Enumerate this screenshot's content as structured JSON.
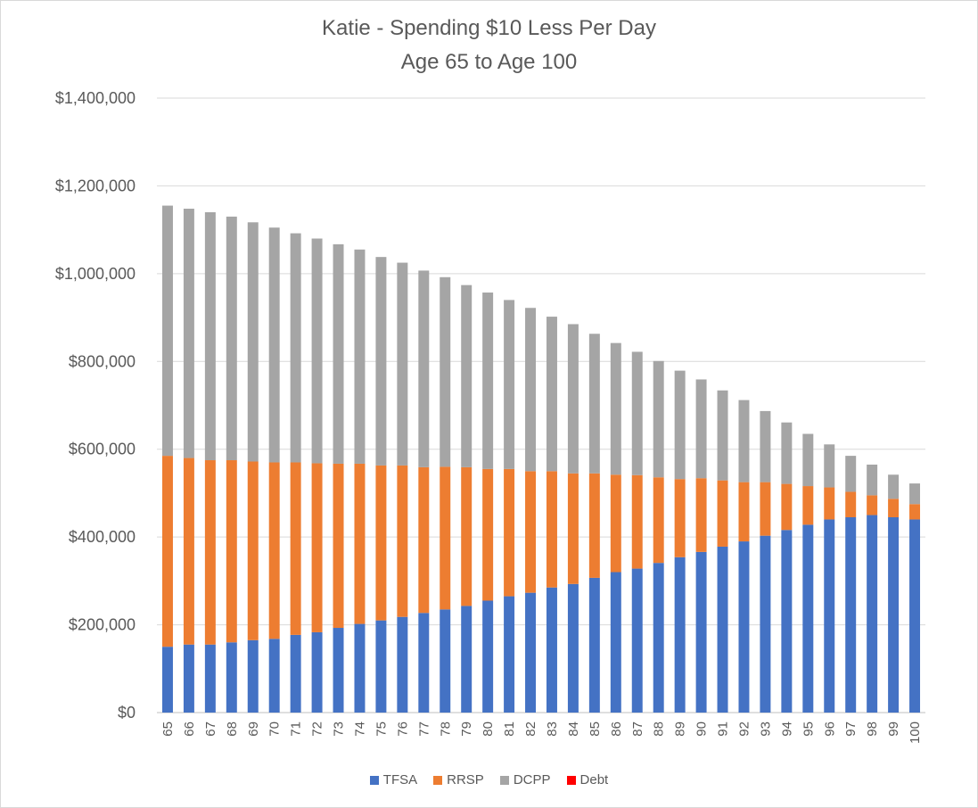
{
  "chart_data": {
    "type": "bar",
    "stacked": true,
    "title": "Katie - Spending $10 Less Per Day",
    "subtitle": "Age 65 to Age 100",
    "xlabel": "",
    "ylabel": "",
    "ylim": [
      0,
      1400000
    ],
    "y_ticks": [
      "$0",
      "$200,000",
      "$400,000",
      "$600,000",
      "$800,000",
      "$1,000,000",
      "$1,200,000",
      "$1,400,000"
    ],
    "grid": true,
    "legend_position": "bottom",
    "categories": [
      "65",
      "66",
      "67",
      "68",
      "69",
      "70",
      "71",
      "72",
      "73",
      "74",
      "75",
      "76",
      "77",
      "78",
      "79",
      "80",
      "81",
      "82",
      "83",
      "84",
      "85",
      "86",
      "87",
      "88",
      "89",
      "90",
      "91",
      "92",
      "93",
      "94",
      "95",
      "96",
      "97",
      "98",
      "99",
      "100"
    ],
    "series": [
      {
        "name": "TFSA",
        "color": "#4472c4",
        "values": [
          150000,
          155000,
          155000,
          160000,
          165000,
          168000,
          177000,
          183000,
          193000,
          202000,
          210000,
          218000,
          227000,
          235000,
          243000,
          255000,
          265000,
          273000,
          285000,
          293000,
          307000,
          320000,
          328000,
          341000,
          354000,
          366000,
          378000,
          390000,
          403000,
          416000,
          428000,
          440000,
          445000,
          450000,
          445000,
          440000
        ]
      },
      {
        "name": "RRSP",
        "color": "#ed7d31",
        "values": [
          435000,
          425000,
          420000,
          415000,
          407000,
          402000,
          393000,
          385000,
          374000,
          365000,
          353000,
          345000,
          332000,
          325000,
          316000,
          300000,
          290000,
          277000,
          265000,
          252000,
          238000,
          222000,
          213000,
          195000,
          178000,
          168000,
          151000,
          135000,
          122000,
          105000,
          88000,
          73000,
          58000,
          45000,
          42000,
          35000
        ]
      },
      {
        "name": "DCPP",
        "color": "#a5a5a5",
        "values": [
          570000,
          568000,
          565000,
          555000,
          545000,
          535000,
          522000,
          512000,
          500000,
          488000,
          475000,
          462000,
          448000,
          432000,
          415000,
          402000,
          385000,
          372000,
          352000,
          340000,
          318000,
          300000,
          281000,
          265000,
          247000,
          225000,
          205000,
          187000,
          162000,
          140000,
          119000,
          98000,
          82000,
          70000,
          55000,
          47000
        ]
      },
      {
        "name": "Debt",
        "color": "#ff0000",
        "values": [
          0,
          0,
          0,
          0,
          0,
          0,
          0,
          0,
          0,
          0,
          0,
          0,
          0,
          0,
          0,
          0,
          0,
          0,
          0,
          0,
          0,
          0,
          0,
          0,
          0,
          0,
          0,
          0,
          0,
          0,
          0,
          0,
          0,
          0,
          0,
          0
        ]
      }
    ]
  }
}
